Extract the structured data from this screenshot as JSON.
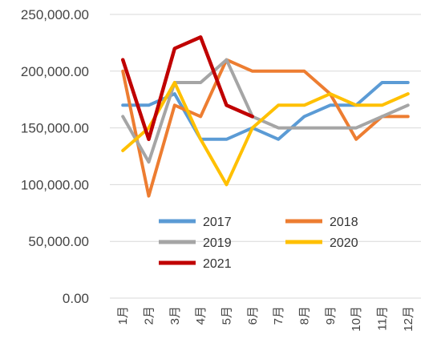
{
  "chart_data": {
    "type": "line",
    "categories": [
      "1月",
      "2月",
      "3月",
      "4月",
      "5月",
      "6月",
      "7月",
      "8月",
      "9月",
      "10月",
      "11月",
      "12月"
    ],
    "ylim": [
      0,
      250000
    ],
    "yticks": [
      0,
      50000,
      100000,
      150000,
      200000,
      250000
    ],
    "ytick_labels": [
      "0.00",
      "50,000.00",
      "100,000.00",
      "150,000.00",
      "200,000.00",
      "250,000.00"
    ],
    "grid": true,
    "legend_placement": "inside-bottom",
    "series": [
      {
        "name": "2017",
        "color": "#5b9bd5",
        "values": [
          170000,
          170000,
          180000,
          140000,
          140000,
          150000,
          140000,
          160000,
          170000,
          170000,
          190000,
          190000
        ]
      },
      {
        "name": "2018",
        "color": "#ed7d31",
        "values": [
          200000,
          90000,
          170000,
          160000,
          210000,
          200000,
          200000,
          200000,
          180000,
          140000,
          160000,
          160000
        ]
      },
      {
        "name": "2019",
        "color": "#a5a5a5",
        "values": [
          160000,
          120000,
          190000,
          190000,
          210000,
          160000,
          150000,
          150000,
          150000,
          150000,
          160000,
          170000
        ]
      },
      {
        "name": "2020",
        "color": "#ffc000",
        "values": [
          130000,
          150000,
          190000,
          140000,
          100000,
          150000,
          170000,
          170000,
          180000,
          170000,
          170000,
          180000
        ]
      },
      {
        "name": "2021",
        "color": "#c00000",
        "values": [
          210000,
          140000,
          220000,
          230000,
          170000,
          160000,
          null,
          null,
          null,
          null,
          null,
          null
        ]
      }
    ]
  }
}
